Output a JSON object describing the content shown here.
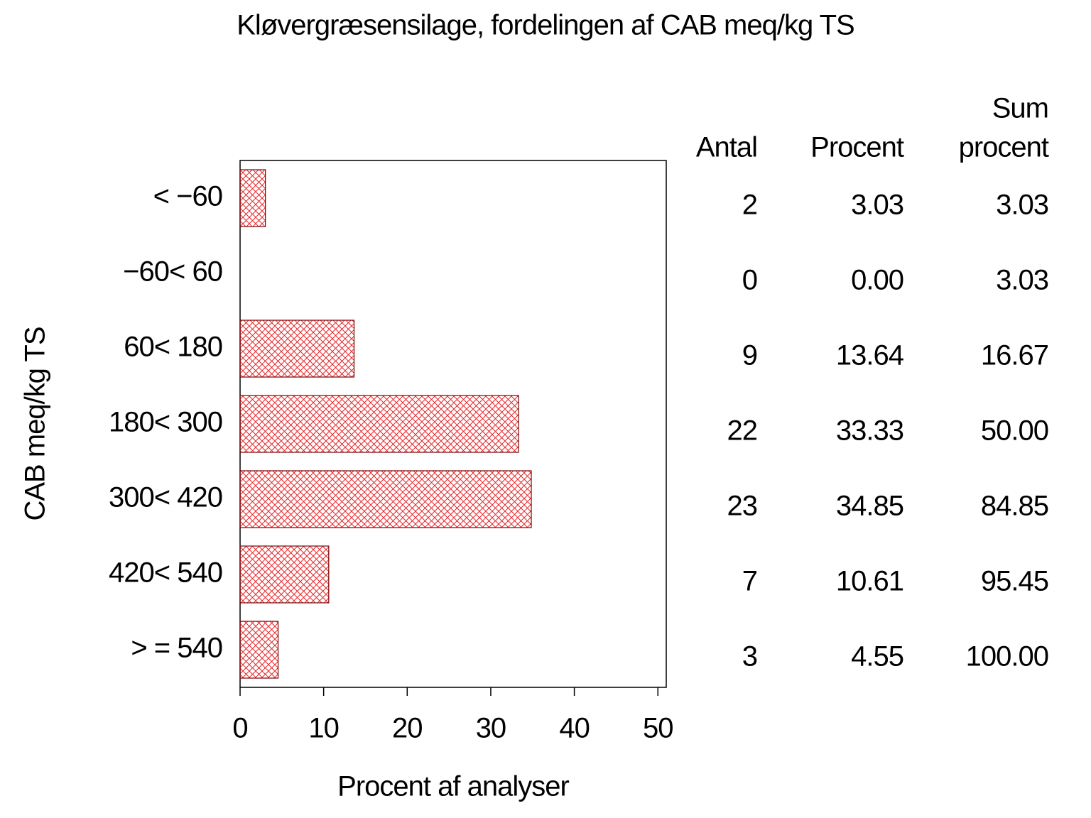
{
  "chart_data": {
    "type": "hbar",
    "title": "Kløvergræsensilage, fordelingen af CAB meq/kg TS",
    "x_label": "Procent af analyser",
    "y_label": "CAB meq/kg TS",
    "categories": [
      "< −60",
      "−60< 60",
      "60< 180",
      "180< 300",
      "300< 420",
      "420< 540",
      "> = 540"
    ],
    "values": [
      3.03,
      0,
      13.64,
      33.33,
      34.85,
      10.61,
      4.55
    ],
    "value_labels": [
      "3.03",
      "0.00",
      "13.64",
      "33.33",
      "34.85",
      "10.61",
      "4.55"
    ],
    "color": "#e8262a",
    "xlim": [
      0,
      51
    ],
    "xticks": [
      0,
      10,
      20,
      30,
      40,
      50
    ],
    "stats_header": {
      "count": "Antal",
      "percent": "Procent",
      "cumulative": [
        "Sum",
        "procent"
      ]
    },
    "counts": [
      2,
      0,
      9,
      22,
      23,
      7,
      3
    ],
    "cumulative_percent": [
      "3.03",
      "3.03",
      "16.67",
      "50.00",
      "84.85",
      "95.45",
      "100.00"
    ]
  }
}
